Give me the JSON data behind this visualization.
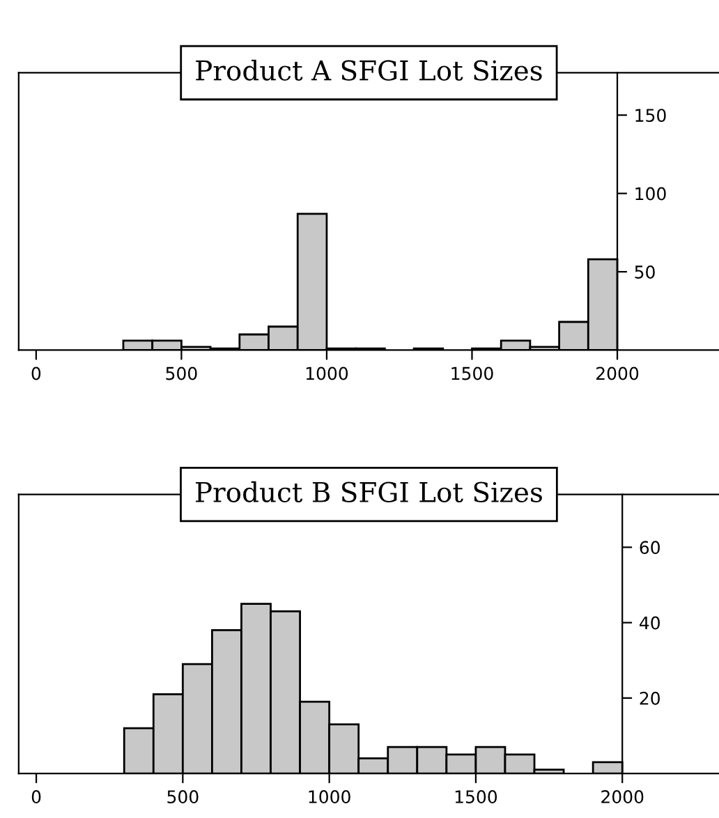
{
  "chart_data": [
    {
      "type": "histogram",
      "title": "Product A SFGI Lot Sizes",
      "bins": [
        300,
        400,
        500,
        600,
        700,
        800,
        900,
        1000,
        1100,
        1200,
        1300,
        1400,
        1500,
        1600,
        1700,
        1800,
        1900,
        2000
      ],
      "values": [
        6,
        6,
        2,
        1,
        10,
        15,
        87,
        1,
        1,
        0,
        1,
        0,
        1,
        6,
        2,
        18,
        58
      ],
      "color": "#c8c8c8",
      "xlim": [
        -60,
        2350
      ],
      "xticks": [
        0,
        500,
        1000,
        1500,
        2000
      ],
      "ylim": [
        0,
        177
      ],
      "yticks": [
        50,
        100,
        150
      ],
      "grid": false
    },
    {
      "type": "histogram",
      "title": "Product B SFGI Lot Sizes",
      "bins": [
        300,
        400,
        500,
        600,
        700,
        800,
        900,
        1000,
        1100,
        1200,
        1300,
        1400,
        1500,
        1600,
        1700,
        1800,
        1900,
        2000
      ],
      "values": [
        12,
        21,
        29,
        38,
        45,
        43,
        19,
        13,
        4,
        7,
        7,
        5,
        7,
        5,
        1,
        0,
        3
      ],
      "color": "#c8c8c8",
      "xlim": [
        -60,
        2330
      ],
      "xticks": [
        0,
        500,
        1000,
        1500,
        2000
      ],
      "ylim": [
        0,
        74
      ],
      "yticks": [
        20,
        40,
        60
      ],
      "grid": false
    }
  ]
}
